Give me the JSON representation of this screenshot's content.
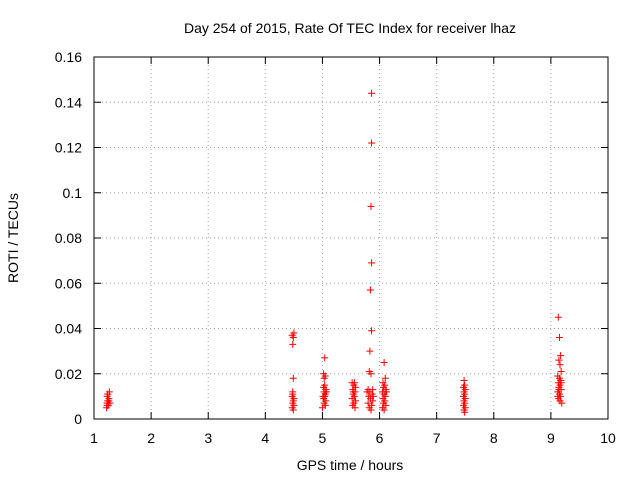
{
  "chart_data": {
    "type": "scatter",
    "title": "Day 254 of 2015, Rate Of TEC Index for receiver lhaz",
    "xlabel": "GPS time / hours",
    "ylabel": "ROTI / TECUs",
    "xlim": [
      1,
      10
    ],
    "ylim": [
      0,
      0.16
    ],
    "xticks": [
      1,
      2,
      3,
      4,
      5,
      6,
      7,
      8,
      9,
      10
    ],
    "yticks": [
      0,
      0.02,
      0.04,
      0.06,
      0.08,
      0.1,
      0.12,
      0.14,
      0.16
    ],
    "xtick_labels": [
      "1",
      "2",
      "3",
      "4",
      "5",
      "6",
      "7",
      "8",
      "9",
      "10"
    ],
    "ytick_labels": [
      "0",
      "0.02",
      "0.04",
      "0.06",
      "0.08",
      "0.1",
      "0.12",
      "0.14",
      "0.16"
    ],
    "grid": true,
    "marker": "+",
    "marker_color": "#ff0000",
    "series": [
      {
        "name": "ROTI",
        "points": [
          [
            1.23,
            0.006
          ],
          [
            1.24,
            0.008
          ],
          [
            1.25,
            0.007
          ],
          [
            1.26,
            0.009
          ],
          [
            1.23,
            0.01
          ],
          [
            1.27,
            0.012
          ],
          [
            1.22,
            0.005
          ],
          [
            1.25,
            0.006
          ],
          [
            1.28,
            0.007
          ],
          [
            1.24,
            0.011
          ],
          [
            1.26,
            0.008
          ],
          [
            1.23,
            0.007
          ],
          [
            4.47,
            0.037
          ],
          [
            4.49,
            0.036
          ],
          [
            4.48,
            0.033
          ],
          [
            4.5,
            0.038
          ],
          [
            4.49,
            0.018
          ],
          [
            4.48,
            0.012
          ],
          [
            4.47,
            0.01
          ],
          [
            4.5,
            0.009
          ],
          [
            4.49,
            0.008
          ],
          [
            4.48,
            0.007
          ],
          [
            4.5,
            0.006
          ],
          [
            4.47,
            0.005
          ],
          [
            4.49,
            0.004
          ],
          [
            4.48,
            0.011
          ],
          [
            5.04,
            0.027
          ],
          [
            5.02,
            0.02
          ],
          [
            5.05,
            0.019
          ],
          [
            5.03,
            0.018
          ],
          [
            5.04,
            0.015
          ],
          [
            5.02,
            0.014
          ],
          [
            5.06,
            0.013
          ],
          [
            5.03,
            0.012
          ],
          [
            5.05,
            0.011
          ],
          [
            5.04,
            0.01
          ],
          [
            5.02,
            0.009
          ],
          [
            5.06,
            0.008
          ],
          [
            5.03,
            0.007
          ],
          [
            5.05,
            0.006
          ],
          [
            5.0,
            0.005
          ],
          [
            5.07,
            0.012
          ],
          [
            5.01,
            0.01
          ],
          [
            5.52,
            0.016
          ],
          [
            5.55,
            0.015
          ],
          [
            5.58,
            0.014
          ],
          [
            5.53,
            0.013
          ],
          [
            5.57,
            0.012
          ],
          [
            5.54,
            0.011
          ],
          [
            5.56,
            0.01
          ],
          [
            5.52,
            0.009
          ],
          [
            5.58,
            0.008
          ],
          [
            5.55,
            0.007
          ],
          [
            5.53,
            0.006
          ],
          [
            5.57,
            0.005
          ],
          [
            5.56,
            0.016
          ],
          [
            5.54,
            0.012
          ],
          [
            5.86,
            0.144
          ],
          [
            5.86,
            0.122
          ],
          [
            5.85,
            0.094
          ],
          [
            5.86,
            0.069
          ],
          [
            5.84,
            0.057
          ],
          [
            5.86,
            0.039
          ],
          [
            5.83,
            0.03
          ],
          [
            5.82,
            0.021
          ],
          [
            5.85,
            0.02
          ],
          [
            5.8,
            0.013
          ],
          [
            5.83,
            0.012
          ],
          [
            5.87,
            0.011
          ],
          [
            5.81,
            0.01
          ],
          [
            5.84,
            0.009
          ],
          [
            5.88,
            0.008
          ],
          [
            5.8,
            0.007
          ],
          [
            5.86,
            0.006
          ],
          [
            5.82,
            0.005
          ],
          [
            5.89,
            0.01
          ],
          [
            5.78,
            0.012
          ],
          [
            5.85,
            0.004
          ],
          [
            5.88,
            0.013
          ],
          [
            6.08,
            0.025
          ],
          [
            6.1,
            0.018
          ],
          [
            6.06,
            0.016
          ],
          [
            6.09,
            0.015
          ],
          [
            6.07,
            0.014
          ],
          [
            6.11,
            0.013
          ],
          [
            6.05,
            0.012
          ],
          [
            6.08,
            0.011
          ],
          [
            6.1,
            0.01
          ],
          [
            6.06,
            0.009
          ],
          [
            6.09,
            0.008
          ],
          [
            6.07,
            0.007
          ],
          [
            6.11,
            0.006
          ],
          [
            6.05,
            0.005
          ],
          [
            6.08,
            0.004
          ],
          [
            6.12,
            0.012
          ],
          [
            7.48,
            0.017
          ],
          [
            7.49,
            0.015
          ],
          [
            7.47,
            0.014
          ],
          [
            7.5,
            0.013
          ],
          [
            7.48,
            0.012
          ],
          [
            7.49,
            0.011
          ],
          [
            7.47,
            0.01
          ],
          [
            7.5,
            0.009
          ],
          [
            7.48,
            0.008
          ],
          [
            7.49,
            0.007
          ],
          [
            7.47,
            0.006
          ],
          [
            7.5,
            0.005
          ],
          [
            7.48,
            0.004
          ],
          [
            7.49,
            0.003
          ],
          [
            9.13,
            0.045
          ],
          [
            9.15,
            0.036
          ],
          [
            9.17,
            0.028
          ],
          [
            9.14,
            0.026
          ],
          [
            9.16,
            0.024
          ],
          [
            9.18,
            0.021
          ],
          [
            9.12,
            0.019
          ],
          [
            9.15,
            0.018
          ],
          [
            9.17,
            0.017
          ],
          [
            9.13,
            0.016
          ],
          [
            9.16,
            0.015
          ],
          [
            9.14,
            0.014
          ],
          [
            9.18,
            0.013
          ],
          [
            9.12,
            0.012
          ],
          [
            9.15,
            0.011
          ],
          [
            9.17,
            0.01
          ],
          [
            9.13,
            0.009
          ],
          [
            9.16,
            0.008
          ],
          [
            9.19,
            0.007
          ],
          [
            9.14,
            0.013
          ],
          [
            9.18,
            0.016
          ],
          [
            9.12,
            0.01
          ]
        ]
      }
    ]
  }
}
